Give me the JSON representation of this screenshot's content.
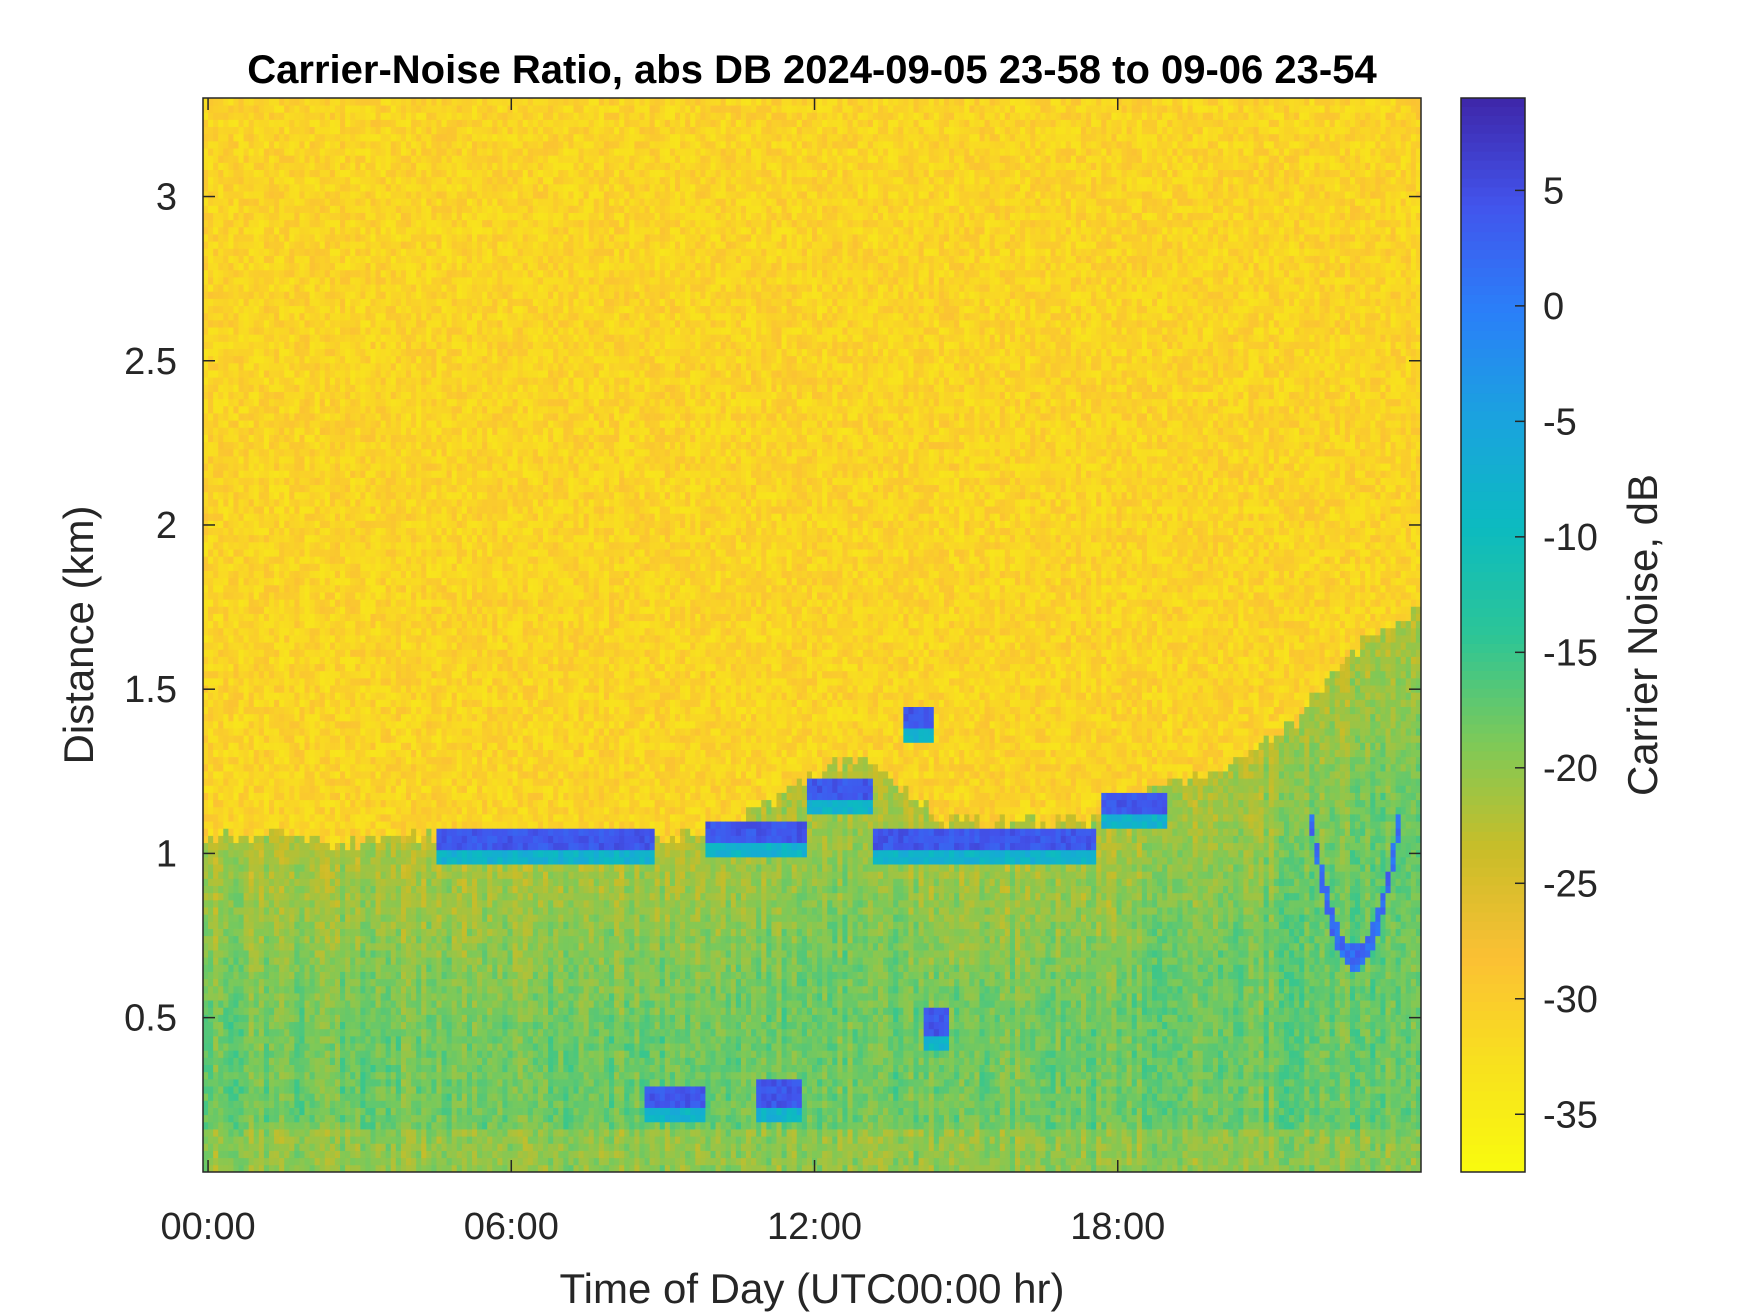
{
  "chart_data": {
    "type": "heatmap",
    "title": "Carrier-Noise Ratio, abs DB 2024-09-05 23-58 to 09-06 23-54",
    "xlabel": "Time of Day (UTC00:00 hr)",
    "ylabel": "Distance (km)",
    "colorbar_label": "Carrier Noise, dB",
    "x_range_hours": [
      -0.1,
      24.0
    ],
    "xlim_hours": [
      -0.1,
      24.0
    ],
    "y_range_km": [
      0.03,
      3.3
    ],
    "ylim_km": [
      0.03,
      3.3
    ],
    "x_ticks": [
      {
        "value": 0,
        "label": "00:00"
      },
      {
        "value": 6,
        "label": "06:00"
      },
      {
        "value": 12,
        "label": "12:00"
      },
      {
        "value": 18,
        "label": "18:00"
      }
    ],
    "y_ticks": [
      {
        "value": 0.5,
        "label": "0.5"
      },
      {
        "value": 1,
        "label": "1"
      },
      {
        "value": 1.5,
        "label": "1.5"
      },
      {
        "value": 2,
        "label": "2"
      },
      {
        "value": 2.5,
        "label": "2.5"
      },
      {
        "value": 3,
        "label": "3"
      }
    ],
    "colorbar_range_db": [
      -37.5,
      9
    ],
    "colorbar_ticks": [
      {
        "value": 5,
        "label": "5"
      },
      {
        "value": 0,
        "label": "0"
      },
      {
        "value": -5,
        "label": "-5"
      },
      {
        "value": -10,
        "label": "-10"
      },
      {
        "value": -15,
        "label": "-15"
      },
      {
        "value": -20,
        "label": "-20"
      },
      {
        "value": -25,
        "label": "-25"
      },
      {
        "value": -30,
        "label": "-30"
      },
      {
        "value": -35,
        "label": "-35"
      }
    ],
    "colormap": "parula",
    "colormap_reversed": true,
    "colormap_stops": [
      "#3e26a8",
      "#4254ec",
      "#2a80f8",
      "#1aa3de",
      "#0cbbc0",
      "#2cc597",
      "#7dc958",
      "#c9bd28",
      "#fbc034",
      "#f8e11e",
      "#f9fb0e"
    ],
    "background_noise_db": -31,
    "structures": {
      "boundary_layer_top_km": [
        [
          0.0,
          1.05
        ],
        [
          1.5,
          1.05
        ],
        [
          2.5,
          1.02
        ],
        [
          3.5,
          1.05
        ],
        [
          4.5,
          1.05
        ],
        [
          8.0,
          1.05
        ],
        [
          10.0,
          1.05
        ],
        [
          12.0,
          1.25
        ],
        [
          13.0,
          1.3
        ],
        [
          14.5,
          1.1
        ],
        [
          17.5,
          1.1
        ],
        [
          18.5,
          1.2
        ],
        [
          20.0,
          1.25
        ],
        [
          21.5,
          1.4
        ],
        [
          22.5,
          1.6
        ],
        [
          24.0,
          1.75
        ]
      ],
      "cloud_base_segments": [
        {
          "t_start": 4.5,
          "t_end": 8.8,
          "height_km": 1.04
        },
        {
          "t_start": 9.8,
          "t_end": 11.8,
          "height_km": 1.07
        },
        {
          "t_start": 11.8,
          "t_end": 13.2,
          "height_km": 1.2
        },
        {
          "t_start": 13.2,
          "t_end": 17.6,
          "height_km": 1.04
        },
        {
          "t_start": 17.7,
          "t_end": 19.0,
          "height_km": 1.15
        },
        {
          "t_start": 13.8,
          "t_end": 14.4,
          "height_km": 1.42
        }
      ],
      "low_cloud_segments": [
        {
          "t_start": 8.6,
          "t_end": 9.8,
          "height_km": 0.26
        },
        {
          "t_start": 10.8,
          "t_end": 11.7,
          "height_km": 0.27
        },
        {
          "t_start": 14.2,
          "t_end": 14.7,
          "height_km": 0.49
        }
      ],
      "descending_cloud_hours": [
        21.8,
        23.6
      ],
      "descending_cloud_min_km": 0.68
    }
  }
}
